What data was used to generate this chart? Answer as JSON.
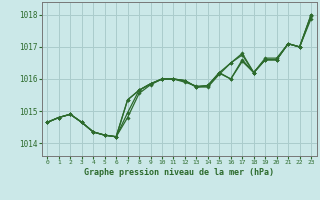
{
  "xlabel": "Graphe pression niveau de la mer (hPa)",
  "bg_color": "#cbe8e8",
  "grid_color": "#aacccc",
  "line_color": "#2d6b2d",
  "ylim": [
    1013.6,
    1018.4
  ],
  "xlim": [
    -0.5,
    23.5
  ],
  "yticks": [
    1014,
    1015,
    1016,
    1017,
    1018
  ],
  "xticks": [
    0,
    1,
    2,
    3,
    4,
    5,
    6,
    7,
    8,
    9,
    10,
    11,
    12,
    13,
    14,
    15,
    16,
    17,
    18,
    19,
    20,
    21,
    22,
    23
  ],
  "series": [
    [
      1014.65,
      1014.8,
      1014.9,
      1014.65,
      1014.35,
      1014.25,
      1014.2,
      1015.35,
      1015.65,
      1015.85,
      1016.0,
      1016.0,
      1015.95,
      1015.75,
      1015.8,
      1016.2,
      1016.5,
      1016.8,
      1016.2,
      1016.65,
      1016.65,
      1017.1,
      1017.0,
      1018.0
    ],
    [
      1014.65,
      1014.8,
      1014.9,
      1014.65,
      1014.35,
      1014.25,
      1014.2,
      1014.95,
      1015.65,
      1015.85,
      1016.0,
      1016.0,
      1015.95,
      1015.75,
      1015.75,
      1016.15,
      1016.5,
      1016.75,
      1016.2,
      1016.6,
      1016.6,
      1017.1,
      1017.0,
      1017.95
    ],
    [
      1014.65,
      1014.8,
      1014.9,
      1014.65,
      1014.35,
      1014.25,
      1014.2,
      1015.35,
      1015.65,
      1015.85,
      1016.0,
      1016.0,
      1015.95,
      1015.75,
      1015.8,
      1016.2,
      1016.0,
      1016.6,
      1016.2,
      1016.6,
      1016.6,
      1017.1,
      1017.0,
      1018.0
    ],
    [
      1014.65,
      1014.8,
      1014.9,
      1014.65,
      1014.35,
      1014.25,
      1014.2,
      1014.8,
      1015.55,
      1015.82,
      1016.0,
      1016.0,
      1015.9,
      1015.78,
      1015.78,
      1016.18,
      1016.0,
      1016.55,
      1016.2,
      1016.6,
      1016.6,
      1017.1,
      1017.0,
      1017.88
    ]
  ]
}
